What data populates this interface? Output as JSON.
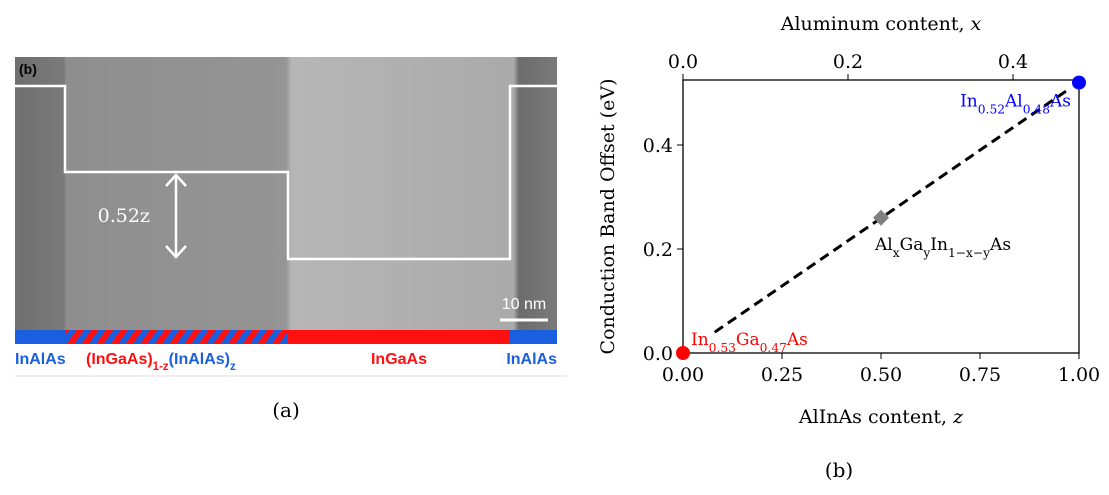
{
  "image": {
    "panel_tag": "(b)",
    "offset_label": "0.52z",
    "scale_bar": "10 nm",
    "layers": [
      [
        "InAlAs"
      ],
      [
        "(InGaAs)",
        "1-z",
        "(InAlAs)",
        "z"
      ],
      [
        "InGaAs"
      ],
      [
        "InAlAs"
      ]
    ],
    "caption": "(a)"
  },
  "chart_data": {
    "type": "scatter",
    "caption": "(b)",
    "xlabel": [
      "AlInAs content,",
      "z"
    ],
    "ylabel": "Conduction Band Offset (eV)",
    "x2label": [
      "Aluminum content,",
      "x"
    ],
    "xlim": [
      0,
      1
    ],
    "xticks": [
      {
        "value": 0,
        "label": "0.00"
      },
      {
        "value": 0.25,
        "label": "0.25"
      },
      {
        "value": 0.5,
        "label": "0.50"
      },
      {
        "value": 0.75,
        "label": "0.75"
      },
      {
        "value": 1,
        "label": "1.00"
      }
    ],
    "x2lim": [
      0,
      0.48
    ],
    "x2ticks": [
      {
        "value": 0,
        "label": "0.0"
      },
      {
        "value": 0.2,
        "label": "0.2"
      },
      {
        "value": 0.4,
        "label": "0.4"
      }
    ],
    "ylim": [
      0,
      0.525
    ],
    "yticks": [
      {
        "value": 0,
        "label": "0.0"
      },
      {
        "value": 0.2,
        "label": "0.2"
      },
      {
        "value": 0.4,
        "label": "0.4"
      }
    ],
    "fit": {
      "color": "#000000",
      "x": [
        0.08,
        0.97
      ],
      "values": [
        0.04,
        0.505
      ]
    },
    "points": {
      "x": [
        0,
        0.5,
        1
      ],
      "values": [
        0,
        0.26,
        0.52
      ],
      "colors": [
        "#ff0000",
        "#808080",
        "#0000ff"
      ],
      "markers": [
        "circle",
        "diamond",
        "circle"
      ],
      "labels": [
        [
          "In",
          "0.53",
          "Ga",
          "0.47",
          "As"
        ],
        [
          "Al",
          "x",
          "Ga",
          "y",
          "In",
          "1−x−y",
          "As"
        ],
        [
          "In",
          "0.52",
          "Al",
          "0.48",
          "As"
        ]
      ]
    }
  }
}
